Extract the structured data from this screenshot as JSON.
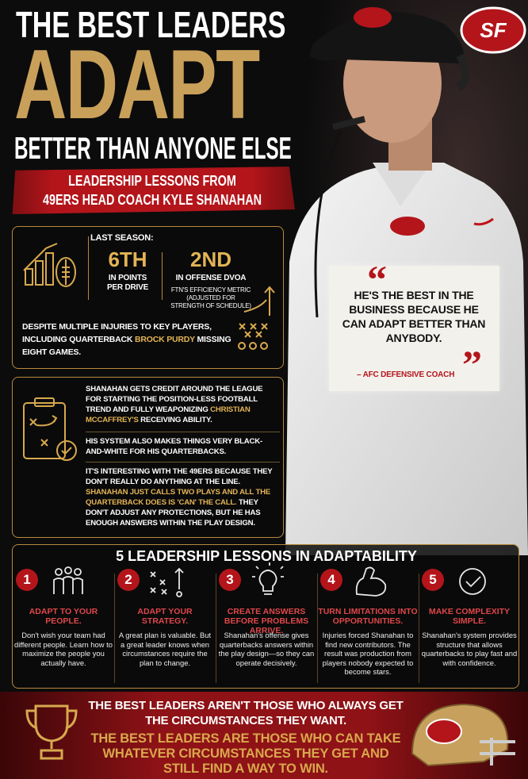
{
  "header": {
    "title_line1": "THE BEST LEADERS",
    "title_line2": "ADAPT",
    "title_line3": "BETTER THAN ANYONE ELSE",
    "subtitle_line1": "LEADERSHIP LESSONS FROM",
    "subtitle_line2": "49ERS HEAD COACH KYLE SHANAHAN",
    "logo": "SF"
  },
  "stats": {
    "label": "LAST SEASON:",
    "items": [
      {
        "value": "6TH",
        "desc": "IN POINTS PER DRIVE"
      },
      {
        "value": "2ND",
        "desc": "IN OFFENSE DVOA",
        "note": "FTN'S EFFICIENCY METRIC (ADJUSTED FOR STRENGTH OF SCHEDULE)"
      }
    ],
    "injury_parts": [
      "DESPITE MULTIPLE INJURIES TO KEY PLAYERS, INCLUDING QUARTERBACK ",
      "BROCK PURDY",
      " MISSING EIGHT GAMES."
    ]
  },
  "quote": {
    "open_mark": "“",
    "text": "HE'S THE BEST IN THE BUSINESS BECAUSE HE CAN ADAPT BETTER THAN ANYBODY.",
    "close_mark": "”",
    "attribution": "– AFC DEFENSIVE COACH"
  },
  "system": {
    "para1_parts": [
      "SHANAHAN GETS CREDIT AROUND THE LEAGUE FOR STARTING THE POSITION-LESS FOOTBALL TREND AND FULLY WEAPONIZING ",
      "CHRISTIAN MCCAFFREY'S",
      " RECEIVING ABILITY."
    ],
    "para2": "HIS SYSTEM ALSO MAKES THINGS VERY BLACK-AND-WHITE FOR HIS QUARTERBACKS.",
    "para3_parts": [
      "IT'S INTERESTING WITH THE 49ERS BECAUSE THEY DON'T REALLY DO ANYTHING AT THE LINE. ",
      "SHANAHAN JUST CALLS TWO PLAYS AND ALL THE QUARTERBACK DOES IS 'CAN' THE CALL.",
      " THEY DON'T ADJUST ANY PROTECTIONS, BUT HE HAS ENOUGH ANSWERS WITHIN THE PLAY DESIGN."
    ]
  },
  "lessons": {
    "title": "5 LEADERSHIP LESSONS IN ADAPTABILITY",
    "items": [
      {
        "number": "1",
        "title": "ADAPT TO YOUR PEOPLE.",
        "text": "Don't wish your team had different people. Learn how to maximize the people you actually have."
      },
      {
        "number": "2",
        "title": "ADAPT YOUR STRATEGY.",
        "text": "A great plan is valuable. But a great leader knows when circumstances require the plan to change."
      },
      {
        "number": "3",
        "title": "CREATE ANSWERS BEFORE PROBLEMS ARRIVE.",
        "text": "Shanahan's offense gives quarterbacks answers within the play design—so they can operate decisively."
      },
      {
        "number": "4",
        "title": "TURN LIMITATIONS INTO OPPORTUNITIES.",
        "text": "Injuries forced Shanahan to find new contributors. The result was production from players nobody expected to become stars."
      },
      {
        "number": "5",
        "title": "MAKE COMPLEXITY SIMPLE.",
        "text": "Shanahan's system provides structure that allows quarterbacks to play fast and with confidence."
      }
    ]
  },
  "footer": {
    "line1": "THE BEST LEADERS AREN'T THOSE WHO ALWAYS GET THE CIRCUMSTANCES THEY WANT.",
    "line2": "THE BEST LEADERS ARE THOSE WHO CAN TAKE WHATEVER CIRCUMSTANCES THEY GET AND STILL FIND A WAY TO WIN."
  }
}
